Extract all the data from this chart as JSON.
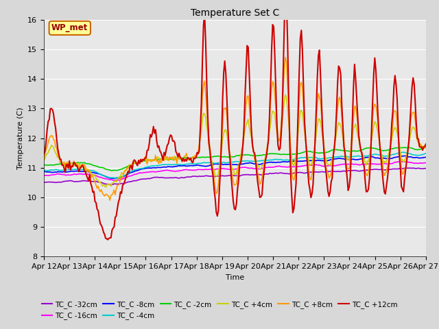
{
  "title": "Temperature Set C",
  "xlabel": "Time",
  "ylabel": "Temperature (C)",
  "ylim": [
    8.0,
    16.0
  ],
  "yticks": [
    8.0,
    9.0,
    10.0,
    11.0,
    12.0,
    13.0,
    14.0,
    15.0,
    16.0
  ],
  "xtick_labels": [
    "Apr 12",
    "Apr 13",
    "Apr 14",
    "Apr 15",
    "Apr 16",
    "Apr 17",
    "Apr 18",
    "Apr 19",
    "Apr 20",
    "Apr 21",
    "Apr 22",
    "Apr 23",
    "Apr 24",
    "Apr 25",
    "Apr 26",
    "Apr 27"
  ],
  "series_order": [
    "TC_C -32cm",
    "TC_C -16cm",
    "TC_C -8cm",
    "TC_C -4cm",
    "TC_C -2cm",
    "TC_C +4cm",
    "TC_C +8cm",
    "TC_C +12cm"
  ],
  "series": {
    "TC_C -32cm": {
      "color": "#9900cc",
      "lw": 1.2
    },
    "TC_C -16cm": {
      "color": "#ff00ff",
      "lw": 1.2
    },
    "TC_C -8cm": {
      "color": "#0000ff",
      "lw": 1.2
    },
    "TC_C -4cm": {
      "color": "#00cccc",
      "lw": 1.2
    },
    "TC_C -2cm": {
      "color": "#00cc00",
      "lw": 1.2
    },
    "TC_C +4cm": {
      "color": "#cccc00",
      "lw": 1.2
    },
    "TC_C +8cm": {
      "color": "#ff9900",
      "lw": 1.2
    },
    "TC_C +12cm": {
      "color": "#cc0000",
      "lw": 1.5
    }
  },
  "annotation": {
    "text": "WP_met",
    "facecolor": "#ffff99",
    "edgecolor": "#cc6600",
    "textcolor": "#990000"
  },
  "fig_facecolor": "#d8d8d8",
  "plot_bg_color": "#e8e8e8",
  "grid_color": "#ffffff",
  "title_fontsize": 10,
  "label_fontsize": 8,
  "tick_fontsize": 8
}
